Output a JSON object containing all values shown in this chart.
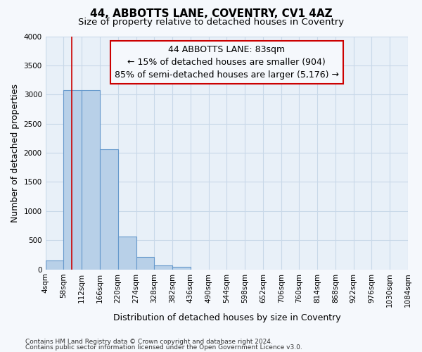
{
  "title": "44, ABBOTTS LANE, COVENTRY, CV1 4AZ",
  "subtitle": "Size of property relative to detached houses in Coventry",
  "xlabel": "Distribution of detached houses by size in Coventry",
  "ylabel": "Number of detached properties",
  "bin_edges": [
    4,
    58,
    112,
    166,
    220,
    274,
    328,
    382,
    436,
    490,
    544,
    598,
    652,
    706,
    760,
    814,
    868,
    922,
    976,
    1030,
    1084
  ],
  "bar_heights": [
    150,
    3070,
    3070,
    2060,
    560,
    210,
    70,
    50,
    0,
    0,
    0,
    0,
    0,
    0,
    0,
    0,
    0,
    0,
    0,
    0
  ],
  "bar_color": "#b8d0e8",
  "bar_edgecolor": "#6699cc",
  "property_size": 83,
  "red_line_color": "#cc0000",
  "annotation_line1": "44 ABBOTTS LANE: 83sqm",
  "annotation_line2": "← 15% of detached houses are smaller (904)",
  "annotation_line3": "85% of semi-detached houses are larger (5,176) →",
  "annotation_box_color": "#cc0000",
  "ylim": [
    0,
    4000
  ],
  "yticks": [
    0,
    500,
    1000,
    1500,
    2000,
    2500,
    3000,
    3500,
    4000
  ],
  "footer_line1": "Contains HM Land Registry data © Crown copyright and database right 2024.",
  "footer_line2": "Contains public sector information licensed under the Open Government Licence v3.0.",
  "background_color": "#f5f8fc",
  "plot_bg_color": "#e8f0f8",
  "grid_color": "#c8d8e8",
  "title_fontsize": 11,
  "subtitle_fontsize": 9.5,
  "tick_fontsize": 7.5,
  "axis_label_fontsize": 9,
  "annotation_fontsize": 9
}
